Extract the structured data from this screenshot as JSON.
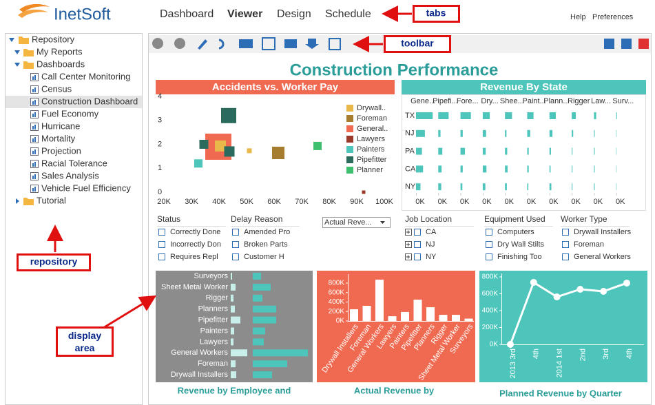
{
  "header": {
    "logo": "InetSoft",
    "tabs": [
      "Dashboard",
      "Viewer",
      "Design",
      "Schedule"
    ],
    "links": [
      "Help",
      "Preferences"
    ]
  },
  "tree": [
    {
      "label": "Repository",
      "expanded": true,
      "children": [
        {
          "label": "My Reports",
          "expanded": true,
          "children": []
        },
        {
          "label": "Dashboards",
          "expanded": true,
          "children": [
            {
              "label": "Call Center Monitoring"
            },
            {
              "label": "Census"
            },
            {
              "label": "Construction Dashboard",
              "selected": true
            },
            {
              "label": "Fuel Economy"
            },
            {
              "label": "Hurricane"
            },
            {
              "label": "Mortality"
            },
            {
              "label": "Projection"
            },
            {
              "label": "Racial Tolerance"
            },
            {
              "label": "Sales Analysis"
            },
            {
              "label": "Vehicle Fuel Efficiency"
            }
          ]
        },
        {
          "label": "Tutorial",
          "expanded": false,
          "children": []
        }
      ]
    }
  ],
  "callouts": [
    "tabs",
    "toolbar",
    "repository",
    "display area"
  ],
  "dashboard": {
    "title": "Construction Performance",
    "dropdown": "Actual Reve...",
    "filters": [
      {
        "title": "Status",
        "items": [
          "Correctly Done",
          "Incorrectly Don",
          "Requires Repl"
        ]
      },
      {
        "title": "Delay Reason",
        "items": [
          "Amended Pro",
          "Broken Parts",
          "Customer H"
        ]
      },
      {
        "title": "Job Location",
        "items": [
          "CA",
          "NJ",
          "NY"
        ],
        "tree": true
      },
      {
        "title": "Equipment Used",
        "items": [
          "Computers",
          "Dry Wall Stilts",
          "Finishing Too"
        ]
      },
      {
        "title": "Worker Type",
        "items": [
          "Drywall Installers",
          "Foreman",
          "General Workers"
        ]
      }
    ]
  },
  "chart_data": [
    {
      "type": "scatter",
      "title": "Accidents vs. Worker Pay",
      "header_color": "#ef6a50",
      "xlim": [
        20000,
        100000
      ],
      "ylim": [
        0,
        4
      ],
      "xticks": [
        {
          "value": 20000,
          "label": "20K"
        },
        {
          "value": 30000,
          "label": "30K"
        },
        {
          "value": 40000,
          "label": "40K"
        },
        {
          "value": 50000,
          "label": "50K"
        },
        {
          "value": 60000,
          "label": "60K"
        },
        {
          "value": 70000,
          "label": "70K"
        },
        {
          "value": 80000,
          "label": "80K"
        },
        {
          "value": 90000,
          "label": "90K"
        },
        {
          "value": 100000,
          "label": "100K"
        }
      ],
      "yticks": [
        0,
        1,
        2,
        3,
        4
      ],
      "series": [
        {
          "name": "Drywall..",
          "color": "#e8b84a",
          "x": [
            40500,
            51000
          ],
          "values": [
            1.93,
            1.73
          ],
          "size": [
            16,
            7
          ]
        },
        {
          "name": "Foreman",
          "color": "#a67c2e",
          "x": [
            61500
          ],
          "values": [
            1.64
          ],
          "size": [
            18
          ]
        },
        {
          "name": "General..",
          "color": "#ef6a50",
          "x": [
            39750
          ],
          "values": [
            1.9
          ],
          "size": [
            38
          ]
        },
        {
          "name": "Lawyers",
          "color": "#9b3a2b",
          "x": [
            92500
          ],
          "values": [
            0
          ],
          "size": [
            5
          ]
        },
        {
          "name": "Painters",
          "color": "#4dc5bb",
          "x": [
            32500
          ],
          "values": [
            1.2
          ],
          "size": [
            12
          ]
        },
        {
          "name": "Pipefitter",
          "color": "#2a6b5e",
          "x": [
            43500,
            34500,
            43750
          ],
          "values": [
            3.2,
            2.0,
            1.7
          ],
          "size": [
            22,
            13,
            15
          ]
        },
        {
          "name": "Planner",
          "color": "#3cc070",
          "x": [
            75750
          ],
          "values": [
            1.93
          ],
          "size": [
            12
          ]
        }
      ]
    },
    {
      "type": "bar",
      "title": "Revenue By State",
      "header_color": "#4dc5bb",
      "color": "#4dc5bb",
      "categories": [
        "TX",
        "NJ",
        "PA",
        "CA",
        "NY"
      ],
      "xlim": [
        0,
        300000
      ],
      "xticks": [
        {
          "value": 0,
          "label": "0K"
        }
      ],
      "series": [
        {
          "name": "Gene...",
          "values": [
            225000,
            120000,
            80000,
            95000,
            60000
          ]
        },
        {
          "name": "Pipefi...",
          "values": [
            140000,
            30000,
            55000,
            45000,
            40000
          ]
        },
        {
          "name": "Fore...",
          "values": [
            140000,
            30000,
            60000,
            30000,
            25000
          ]
        },
        {
          "name": "Dry...",
          "values": [
            95000,
            45000,
            40000,
            50000,
            35000
          ]
        },
        {
          "name": "Shee...",
          "values": [
            95000,
            20000,
            30000,
            35000,
            25000
          ]
        },
        {
          "name": "Paint...",
          "values": [
            85000,
            40000,
            20000,
            20000,
            15000
          ]
        },
        {
          "name": "Plann...",
          "values": [
            85000,
            40000,
            20000,
            15000,
            25000
          ]
        },
        {
          "name": "Rigger",
          "values": [
            55000,
            20000,
            10000,
            10000,
            10000
          ]
        },
        {
          "name": "Law...",
          "values": [
            30000,
            10000,
            10000,
            10000,
            10000
          ]
        },
        {
          "name": "Surv...",
          "values": [
            10000,
            5000,
            5000,
            5000,
            5000
          ]
        }
      ]
    },
    {
      "type": "hbar",
      "title": "Revenue by Employee and",
      "background": "#8c8c8c",
      "categories": [
        "Surveyors",
        "Sheet Metal Worker",
        "Rigger",
        "Planners",
        "Pipefitter",
        "Painters",
        "Lawyers",
        "General Workers",
        "Foreman",
        "Drywall Installers"
      ],
      "series": [
        {
          "color": "#c9efeb",
          "values": [
            2,
            7,
            4,
            6,
            14,
            5,
            4,
            24,
            7,
            8
          ]
        },
        {
          "color": "#4dc5bb",
          "values": [
            12,
            26,
            14,
            34,
            34,
            18,
            16,
            80,
            50,
            28
          ]
        }
      ]
    },
    {
      "type": "bar",
      "title": "Actual Revenue by",
      "background": "#ef6a50",
      "color": "#ffffff",
      "categories": [
        "Drywall Installers",
        "Foreman",
        "General Workers",
        "Lawyers",
        "Painters",
        "Pipefitter",
        "Planners",
        "Rigger",
        "Sheet Metal Worker",
        "Surveyors"
      ],
      "values": [
        247000,
        320000,
        873000,
        100000,
        190000,
        450000,
        290000,
        130000,
        130000,
        50000
      ],
      "ylim": [
        0,
        900000
      ],
      "yticks": [
        {
          "value": 0,
          "label": "0K"
        },
        {
          "value": 200000,
          "label": "200K"
        },
        {
          "value": 400000,
          "label": "400K"
        },
        {
          "value": 600000,
          "label": "600K"
        },
        {
          "value": 800000,
          "label": "800K"
        }
      ]
    },
    {
      "type": "line",
      "title": "Planned Revenue by Quarter",
      "background": "#4dc5bb",
      "color": "#ffffff",
      "categories": [
        "2013 3rd",
        "4th",
        "2014 1st",
        "2nd",
        "3rd",
        "4th"
      ],
      "values": [
        0,
        735000,
        563000,
        653000,
        629000,
        727000
      ],
      "ylim": [
        0,
        820000
      ],
      "yticks": [
        {
          "value": 0,
          "label": "0K"
        },
        {
          "value": 200000,
          "label": "200K"
        },
        {
          "value": 400000,
          "label": "400K"
        },
        {
          "value": 600000,
          "label": "600K"
        },
        {
          "value": 800000,
          "label": "800K"
        }
      ]
    }
  ]
}
